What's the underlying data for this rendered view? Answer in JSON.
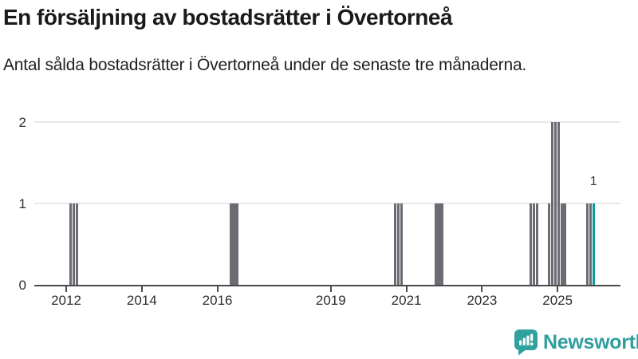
{
  "header": {
    "title": "En försäljning av bostadsrätter i Övertorneå",
    "subtitle": "Antal sålda bostadsrätter i Övertorneå under de senaste tre månaderna."
  },
  "chart_data": {
    "type": "bar",
    "title": "En försäljning av bostadsrätter i Övertorneå",
    "subtitle": "Antal sålda bostadsrätter i Övertorneå under de senaste tre månaderna.",
    "xlabel": "",
    "ylabel": "",
    "ylim": [
      0,
      2
    ],
    "yticks": [
      "0",
      "1",
      "2"
    ],
    "xticks": [
      "2012",
      "2014",
      "2016",
      "2019",
      "2021",
      "2023",
      "2025"
    ],
    "grid": "horizontal",
    "legend": "none",
    "unit": "sold condominiums per month",
    "bars": [
      {
        "month": "2012-02",
        "span": 1,
        "value": 1
      },
      {
        "month": "2012-03",
        "span": 1,
        "value": 1
      },
      {
        "month": "2012-04",
        "span": 1,
        "value": 1
      },
      {
        "month": "2016-05",
        "span": 3,
        "value": 1
      },
      {
        "month": "2020-09",
        "span": 1,
        "value": 1
      },
      {
        "month": "2020-10",
        "span": 1,
        "value": 1
      },
      {
        "month": "2020-11",
        "span": 1,
        "value": 1
      },
      {
        "month": "2021-10",
        "span": 3,
        "value": 1
      },
      {
        "month": "2024-04",
        "span": 1,
        "value": 1
      },
      {
        "month": "2024-05",
        "span": 1,
        "value": 1
      },
      {
        "month": "2024-06",
        "span": 1,
        "value": 1
      },
      {
        "month": "2024-10",
        "span": 1,
        "value": 1
      },
      {
        "month": "2024-11",
        "span": 1,
        "value": 2
      },
      {
        "month": "2024-12",
        "span": 1,
        "value": 2
      },
      {
        "month": "2025-01",
        "span": 1,
        "value": 2
      },
      {
        "month": "2025-02",
        "span": 2,
        "value": 1
      },
      {
        "month": "2025-10",
        "span": 1,
        "value": 1
      },
      {
        "month": "2025-11",
        "span": 1,
        "value": 1
      },
      {
        "month": "2025-12",
        "span": 1,
        "value": 1,
        "highlight": true,
        "label": "1"
      }
    ],
    "colors": {
      "bar": "#6b6b73",
      "highlight": "#0a9c9a",
      "grid": "#e9e9e9",
      "axis": "#4b4b4b"
    }
  },
  "footer": {
    "brand": "Newsworthy",
    "brand_color": "#2f9e9c"
  }
}
